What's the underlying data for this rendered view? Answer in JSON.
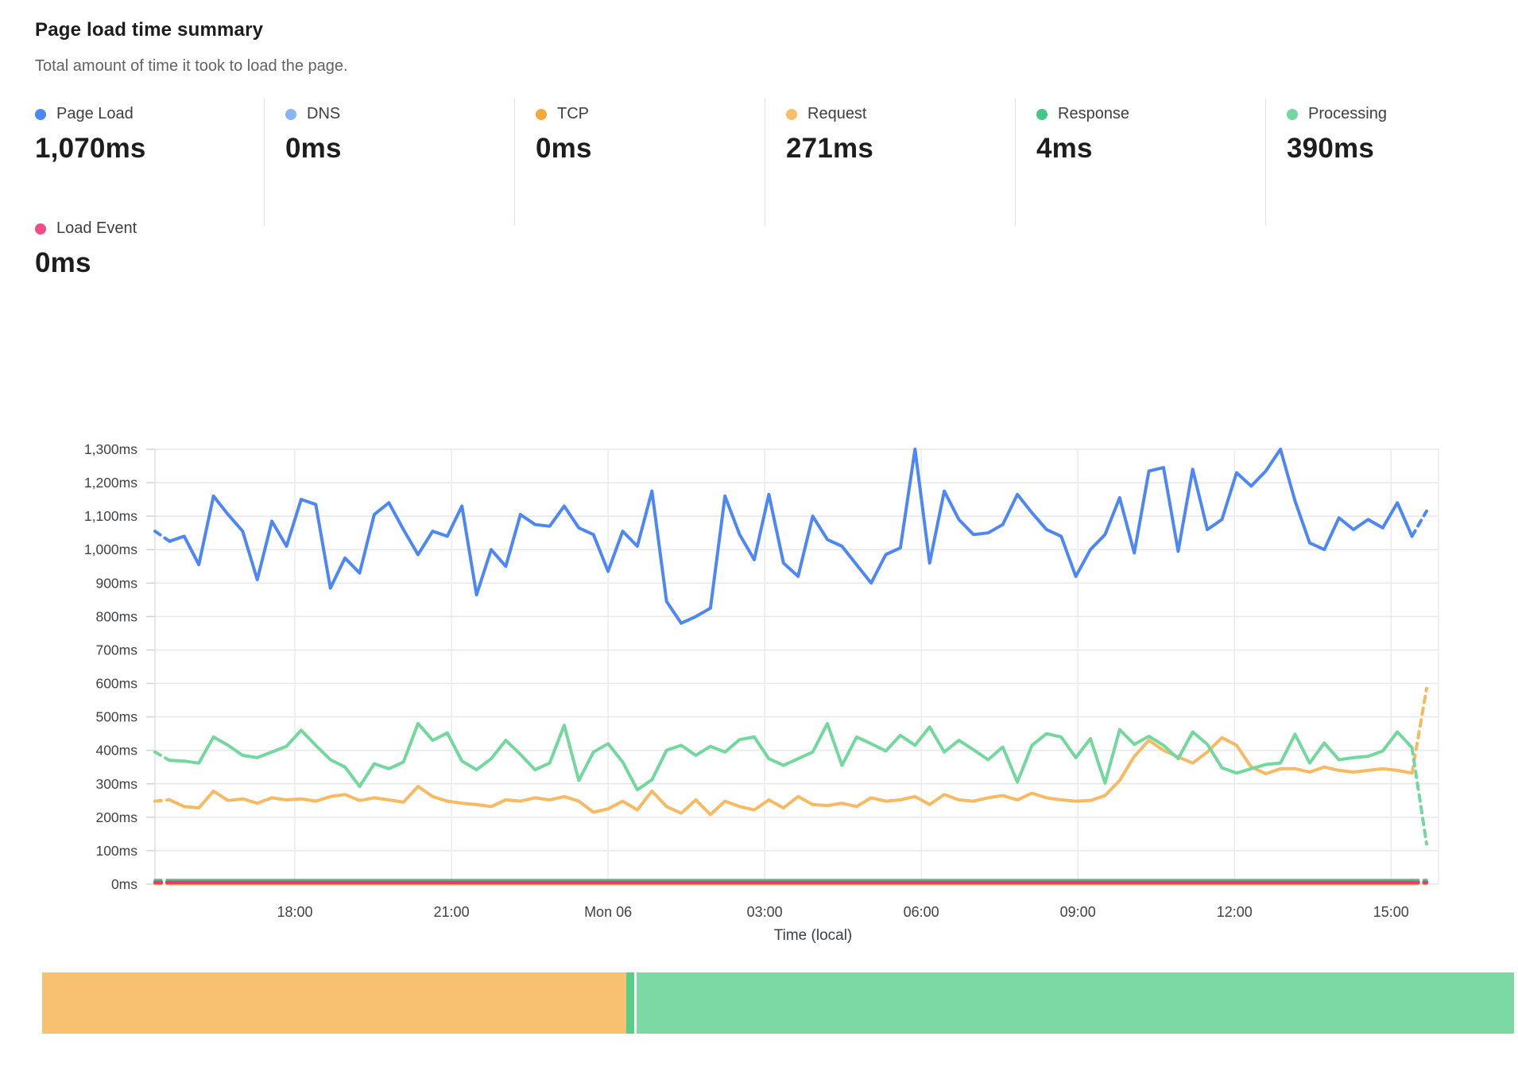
{
  "header": {
    "title": "Page load time summary",
    "subtitle": "Total amount of time it took to load the page."
  },
  "metrics": {
    "row1": [
      {
        "id": "page_load",
        "label": "Page Load",
        "value": "1,070ms",
        "color": "#4d87f5"
      },
      {
        "id": "dns",
        "label": "DNS",
        "value": "0ms",
        "color": "#8ab4f8"
      },
      {
        "id": "tcp",
        "label": "TCP",
        "value": "0ms",
        "color": "#f5a83d"
      },
      {
        "id": "request",
        "label": "Request",
        "value": "271ms",
        "color": "#f6bd6b"
      },
      {
        "id": "response",
        "label": "Response",
        "value": "4ms",
        "color": "#45c788"
      },
      {
        "id": "processing",
        "label": "Processing",
        "value": "390ms",
        "color": "#72d89e"
      }
    ],
    "row2": [
      {
        "id": "load_event",
        "label": "Load Event",
        "value": "0ms",
        "color": "#f04d86"
      }
    ]
  },
  "chart_data": {
    "type": "line",
    "unit": "ms",
    "ylim": [
      0,
      1300
    ],
    "ytick_step": 100,
    "grid": true,
    "xlabel": "Time (local)",
    "xticks": [
      {
        "label": "18:00",
        "f": 0.109
      },
      {
        "label": "21:00",
        "f": 0.231
      },
      {
        "label": "Mon 06",
        "f": 0.353
      },
      {
        "label": "03:00",
        "f": 0.475
      },
      {
        "label": "06:00",
        "f": 0.597
      },
      {
        "label": "09:00",
        "f": 0.719
      },
      {
        "label": "12:00",
        "f": 0.841
      },
      {
        "label": "15:00",
        "f": 0.963
      }
    ],
    "edge_dash": {
      "lead_points": 1,
      "trail_points": 1
    },
    "series": [
      {
        "name": "DNS",
        "color": "#8ab4f8",
        "width": 2.5,
        "flat": 0
      },
      {
        "name": "TCP",
        "color": "#f5a83d",
        "width": 2.5,
        "flat": 0
      },
      {
        "name": "Request",
        "color": "#f7ba62",
        "width": 4,
        "values": [
          248,
          252,
          232,
          228,
          278,
          250,
          255,
          242,
          258,
          252,
          255,
          248,
          262,
          268,
          250,
          258,
          252,
          245,
          292,
          262,
          248,
          242,
          238,
          232,
          252,
          248,
          258,
          252,
          262,
          248,
          215,
          225,
          248,
          222,
          278,
          232,
          212,
          252,
          208,
          248,
          232,
          222,
          252,
          228,
          262,
          238,
          235,
          242,
          232,
          258,
          248,
          252,
          262,
          238,
          268,
          252,
          248,
          258,
          265,
          252,
          272,
          258,
          252,
          248,
          250,
          265,
          310,
          382,
          430,
          400,
          380,
          362,
          395,
          438,
          415,
          350,
          330,
          345,
          345,
          335,
          350,
          340,
          335,
          340,
          345,
          340,
          332,
          585
        ]
      },
      {
        "name": "Processing",
        "color": "#72d89e",
        "width": 4,
        "values": [
          395,
          370,
          368,
          362,
          440,
          415,
          385,
          378,
          395,
          412,
          460,
          415,
          372,
          350,
          292,
          360,
          345,
          365,
          480,
          430,
          452,
          368,
          342,
          375,
          430,
          388,
          342,
          362,
          475,
          310,
          395,
          420,
          365,
          282,
          312,
          400,
          415,
          385,
          412,
          395,
          432,
          440,
          375,
          355,
          375,
          395,
          480,
          355,
          440,
          420,
          398,
          445,
          415,
          470,
          395,
          430,
          402,
          372,
          410,
          305,
          415,
          450,
          440,
          378,
          435,
          302,
          462,
          418,
          442,
          415,
          375,
          455,
          418,
          348,
          332,
          345,
          358,
          362,
          448,
          362,
          422,
          372,
          378,
          382,
          398,
          455,
          408,
          120
        ]
      },
      {
        "name": "Response",
        "color": "#45c788",
        "width": 3.5,
        "flat": 12
      },
      {
        "name": "Page Load",
        "color": "#4d87f5",
        "width": 4,
        "values": [
          1055,
          1025,
          1040,
          955,
          1160,
          1105,
          1055,
          910,
          1085,
          1010,
          1150,
          1135,
          885,
          975,
          930,
          1105,
          1140,
          1060,
          985,
          1055,
          1040,
          1130,
          865,
          1000,
          950,
          1105,
          1075,
          1070,
          1130,
          1065,
          1045,
          935,
          1055,
          1010,
          1175,
          845,
          780,
          800,
          825,
          1160,
          1045,
          970,
          1165,
          960,
          920,
          1100,
          1030,
          1010,
          955,
          900,
          985,
          1005,
          1300,
          960,
          1175,
          1090,
          1045,
          1050,
          1075,
          1165,
          1110,
          1060,
          1040,
          920,
          1000,
          1045,
          1155,
          990,
          1235,
          1245,
          995,
          1240,
          1060,
          1090,
          1230,
          1190,
          1235,
          1300,
          1145,
          1020,
          1000,
          1095,
          1060,
          1090,
          1065,
          1140,
          1040,
          1115
        ]
      },
      {
        "name": "Load Event",
        "color": "#dc4077",
        "width": 4.5,
        "flat": 5
      }
    ]
  },
  "timeline_bar": {
    "segments": [
      {
        "name": "request-span",
        "color": "#f8c171",
        "weight": 39.7
      },
      {
        "name": "status-divider",
        "color": "#57ce89",
        "weight": 0.5
      },
      {
        "name": "gap",
        "color": "#ffffff",
        "weight": 0.2
      },
      {
        "name": "processing-span",
        "color": "#7cd9a3",
        "weight": 59.6
      }
    ]
  }
}
